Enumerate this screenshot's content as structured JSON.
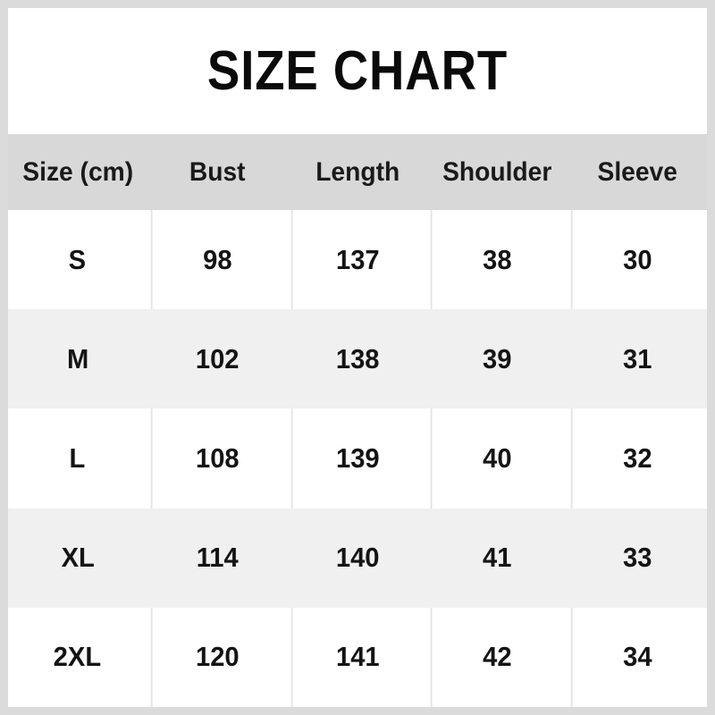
{
  "page": {
    "title": "SIZE CHART",
    "colors": {
      "frame": "#dbdbdb",
      "header_bg": "#d8d8d8",
      "alt_row_bg": "#f0f0f0",
      "row_bg": "#ffffff",
      "separator": "#e4e4e4",
      "text": "#141414"
    }
  },
  "table": {
    "columns": [
      "Size (cm)",
      "Bust",
      "Length",
      "Shoulder",
      "Sleeve"
    ],
    "rows": [
      {
        "size": "S",
        "values": [
          "98",
          "137",
          "38",
          "30"
        ]
      },
      {
        "size": "M",
        "values": [
          "102",
          "138",
          "39",
          "31"
        ]
      },
      {
        "size": "L",
        "values": [
          "108",
          "139",
          "40",
          "32"
        ]
      },
      {
        "size": "XL",
        "values": [
          "114",
          "140",
          "41",
          "33"
        ]
      },
      {
        "size": "2XL",
        "values": [
          "120",
          "141",
          "42",
          "34"
        ]
      }
    ]
  },
  "chart_data": {
    "type": "table",
    "title": "SIZE CHART",
    "units": "cm",
    "columns": [
      "Size (cm)",
      "Bust",
      "Length",
      "Shoulder",
      "Sleeve"
    ],
    "rows": [
      [
        "S",
        98,
        137,
        38,
        30
      ],
      [
        "M",
        102,
        138,
        39,
        31
      ],
      [
        "L",
        108,
        139,
        40,
        32
      ],
      [
        "XL",
        114,
        140,
        41,
        33
      ],
      [
        "2XL",
        120,
        141,
        42,
        34
      ]
    ]
  }
}
